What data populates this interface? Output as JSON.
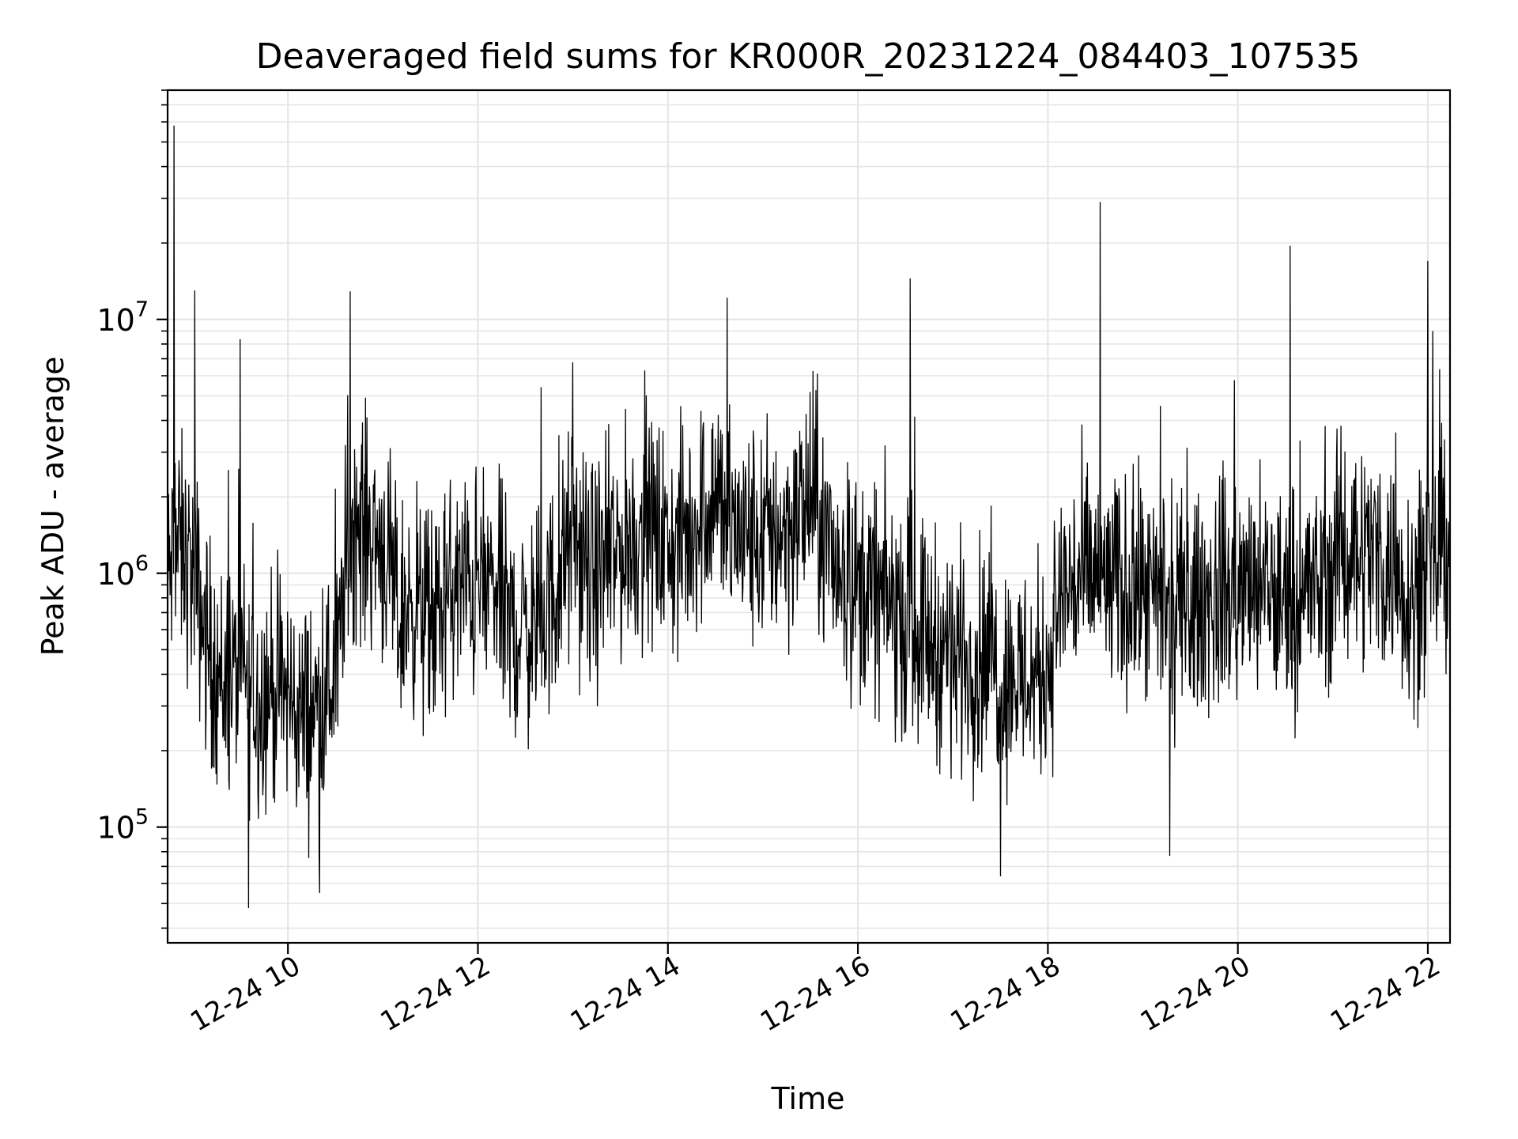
{
  "chart_data": {
    "type": "line",
    "title": "Deaveraged field sums for KR000R_20231224_084403_107535",
    "xlabel": "Time",
    "ylabel": "Peak ADU - average",
    "yscale": "log",
    "ylim": [
      35000,
      80000000
    ],
    "xlim": [
      "2023-12-24 08:44",
      "2023-12-24 22:14"
    ],
    "grid": true,
    "line_color": "#000000",
    "grid_color": "#e6e6e6",
    "x_ticks": [
      {
        "value": "2023-12-24 10:00",
        "label": "12-24 10"
      },
      {
        "value": "2023-12-24 12:00",
        "label": "12-24 12"
      },
      {
        "value": "2023-12-24 14:00",
        "label": "12-24 14"
      },
      {
        "value": "2023-12-24 16:00",
        "label": "12-24 16"
      },
      {
        "value": "2023-12-24 18:00",
        "label": "12-24 18"
      },
      {
        "value": "2023-12-24 20:00",
        "label": "12-24 20"
      },
      {
        "value": "2023-12-24 22:00",
        "label": "12-24 22"
      }
    ],
    "y_ticks": [
      {
        "value": 100000,
        "base": "10",
        "exp": "5"
      },
      {
        "value": 1000000,
        "base": "10",
        "exp": "6"
      },
      {
        "value": 10000000,
        "base": "10",
        "exp": "7"
      }
    ],
    "x": [
      "2023-12-24 08:44",
      "2023-12-24 08:50",
      "2023-12-24 09:00",
      "2023-12-24 09:10",
      "2023-12-24 09:20",
      "2023-12-24 09:30",
      "2023-12-24 09:40",
      "2023-12-24 09:50",
      "2023-12-24 10:00",
      "2023-12-24 10:10",
      "2023-12-24 10:20",
      "2023-12-24 10:30",
      "2023-12-24 10:40",
      "2023-12-24 10:50",
      "2023-12-24 11:00",
      "2023-12-24 11:10",
      "2023-12-24 11:20",
      "2023-12-24 11:30",
      "2023-12-24 11:40",
      "2023-12-24 11:50",
      "2023-12-24 12:00",
      "2023-12-24 12:10",
      "2023-12-24 12:20",
      "2023-12-24 12:30",
      "2023-12-24 12:40",
      "2023-12-24 12:50",
      "2023-12-24 13:00",
      "2023-12-24 13:10",
      "2023-12-24 13:20",
      "2023-12-24 13:30",
      "2023-12-24 13:40",
      "2023-12-24 13:50",
      "2023-12-24 14:00",
      "2023-12-24 14:10",
      "2023-12-24 14:20",
      "2023-12-24 14:30",
      "2023-12-24 14:40",
      "2023-12-24 14:50",
      "2023-12-24 15:00",
      "2023-12-24 15:10",
      "2023-12-24 15:20",
      "2023-12-24 15:30",
      "2023-12-24 15:40",
      "2023-12-24 15:50",
      "2023-12-24 16:00",
      "2023-12-24 16:10",
      "2023-12-24 16:20",
      "2023-12-24 16:30",
      "2023-12-24 16:40",
      "2023-12-24 16:50",
      "2023-12-24 17:00",
      "2023-12-24 17:10",
      "2023-12-24 17:20",
      "2023-12-24 17:30",
      "2023-12-24 17:40",
      "2023-12-24 17:50",
      "2023-12-24 18:00",
      "2023-12-24 18:10",
      "2023-12-24 18:20",
      "2023-12-24 18:30",
      "2023-12-24 18:40",
      "2023-12-24 18:50",
      "2023-12-24 19:00",
      "2023-12-24 19:10",
      "2023-12-24 19:20",
      "2023-12-24 19:30",
      "2023-12-24 19:40",
      "2023-12-24 19:50",
      "2023-12-24 20:00",
      "2023-12-24 20:10",
      "2023-12-24 20:20",
      "2023-12-24 20:30",
      "2023-12-24 20:40",
      "2023-12-24 20:50",
      "2023-12-24 21:00",
      "2023-12-24 21:10",
      "2023-12-24 21:20",
      "2023-12-24 21:30",
      "2023-12-24 21:40",
      "2023-12-24 21:50",
      "2023-12-24 22:00",
      "2023-12-24 22:10"
    ],
    "series": [
      {
        "values": [
          900000,
          1300000,
          1000000,
          500000,
          350000,
          420000,
          320000,
          360000,
          330000,
          270000,
          310000,
          390000,
          1600000,
          1500000,
          1300000,
          650000,
          800000,
          600000,
          780000,
          900000,
          880000,
          900000,
          620000,
          600000,
          640000,
          880000,
          1400000,
          950000,
          1050000,
          1250000,
          1400000,
          1500000,
          1250000,
          1300000,
          1700000,
          2100000,
          1500000,
          1400000,
          1350000,
          1500000,
          1600000,
          2000000,
          1250000,
          1050000,
          880000,
          850000,
          760000,
          640000,
          600000,
          520000,
          500000,
          460000,
          470000,
          420000,
          400000,
          390000,
          440000,
          880000,
          900000,
          1000000,
          880000,
          850000,
          830000,
          720000,
          680000,
          720000,
          780000,
          800000,
          880000,
          850000,
          800000,
          760000,
          880000,
          850000,
          1050000,
          1300000,
          1250000,
          1150000,
          1000000,
          820000,
          950000,
          1300000
        ]
      }
    ],
    "spikes": [
      {
        "x": "2023-12-24 08:48",
        "y": 58000000
      },
      {
        "x": "2023-12-24 09:01",
        "y": 13000000
      },
      {
        "x": "2023-12-24 16:33",
        "y": 14500000
      },
      {
        "x": "2023-12-24 18:33",
        "y": 29000000
      },
      {
        "x": "2023-12-24 20:33",
        "y": 19500000
      },
      {
        "x": "2023-12-24 22:00",
        "y": 17000000
      },
      {
        "x": "2023-12-24 22:03",
        "y": 9000000
      }
    ],
    "dips": [
      {
        "x": "2023-12-24 09:35",
        "y": 48000.0
      },
      {
        "x": "2023-12-24 10:20",
        "y": 55000
      },
      {
        "x": "2023-12-24 17:30",
        "y": 64000
      },
      {
        "x": "2023-12-24 19:17",
        "y": 77000
      }
    ]
  }
}
